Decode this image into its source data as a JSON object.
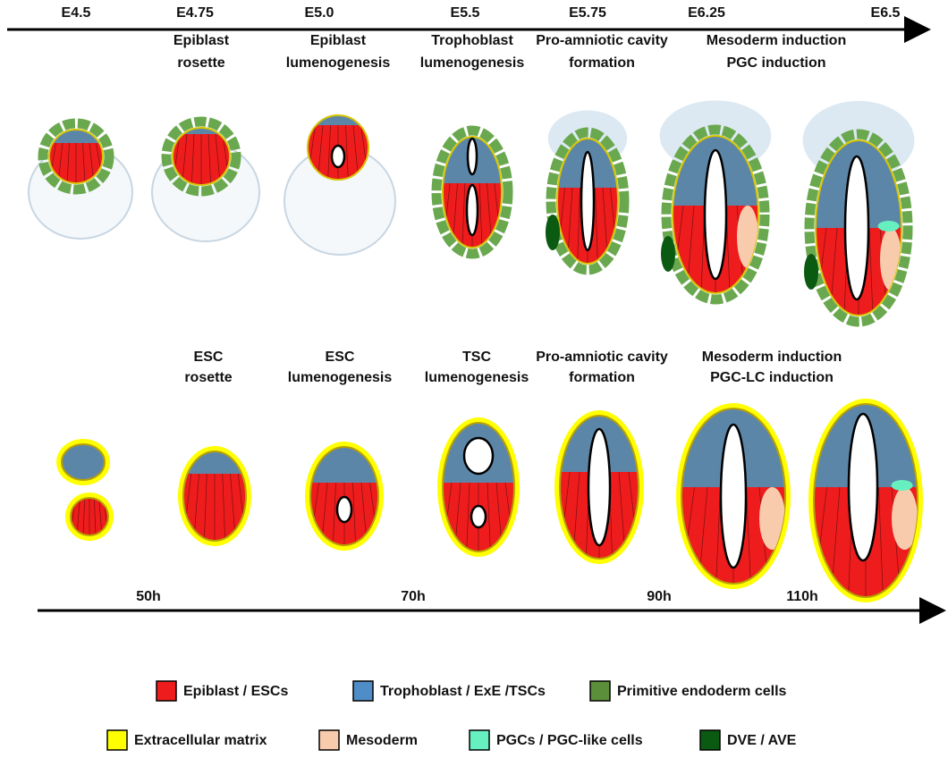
{
  "top_timeline": {
    "stages": [
      "E4.5",
      "E4.75",
      "E5.0",
      "E5.5",
      "E5.75",
      "E6.25",
      "E6.5"
    ]
  },
  "top_row": {
    "labels": [
      [
        "Epiblast",
        "rosette"
      ],
      [
        "Epiblast",
        "lumenogenesis"
      ],
      [
        "Trophoblast",
        "lumenogenesis"
      ],
      [
        "Pro-amniotic cavity",
        "formation"
      ],
      [
        "Mesoderm induction",
        "PGC induction"
      ]
    ]
  },
  "bottom_row": {
    "labels": [
      [
        "ESC",
        "rosette"
      ],
      [
        "ESC",
        "lumenogenesis"
      ],
      [
        "TSC",
        "lumenogenesis"
      ],
      [
        "Pro-amniotic cavity",
        "formation"
      ],
      [
        "Mesoderm induction",
        "PGC-LC induction"
      ]
    ]
  },
  "bottom_timeline": {
    "hours": [
      "50h",
      "70h",
      "90h",
      "110h"
    ]
  },
  "legend": [
    {
      "label": "Epiblast / ESCs",
      "color": "#ee1c1c"
    },
    {
      "label": "Trophoblast / ExE /TSCs",
      "color": "#4f8dc8"
    },
    {
      "label": "Primitive endoderm cells",
      "color": "#5b8f3a"
    },
    {
      "label": "Extracellular matrix",
      "color": "#ffff00"
    },
    {
      "label": "Mesoderm",
      "color": "#f8cbad"
    },
    {
      "label": "PGCs / PGC-like cells",
      "color": "#66f0c0"
    },
    {
      "label": "DVE / AVE",
      "color": "#0b5a12"
    }
  ]
}
